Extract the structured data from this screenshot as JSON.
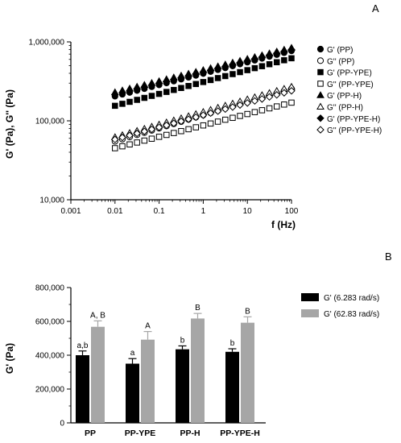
{
  "panels": {
    "a": "A",
    "b": "B"
  },
  "chart_data": [
    {
      "type": "scatter",
      "xlabel": "f (Hz)",
      "ylabel": "G' (Pa), G'' (Pa)",
      "xscale": "log",
      "yscale": "log",
      "xlim": [
        0.001,
        100
      ],
      "ylim": [
        10000,
        1000000
      ],
      "xticks": [
        "0.001",
        "0.01",
        "0.1",
        "1",
        "10",
        "100"
      ],
      "yticks": [
        "10,000",
        "100,000",
        "1,000,000"
      ],
      "grid": false,
      "legend_position": "right",
      "x": [
        0.01,
        0.0147,
        0.0215,
        0.0316,
        0.0464,
        0.0681,
        0.1,
        0.147,
        0.215,
        0.316,
        0.464,
        0.681,
        1,
        1.47,
        2.15,
        3.16,
        4.64,
        6.81,
        10,
        14.7,
        21.5,
        31.6,
        46.4,
        68.1,
        100
      ],
      "series": [
        {
          "name": "G' (PP)",
          "marker": "filled-circle",
          "y_start": 205000,
          "y_end": 770000
        },
        {
          "name": "G'' (PP)",
          "marker": "open-circle",
          "y_start": 55000,
          "y_end": 255000
        },
        {
          "name": "G' (PP-YPE)",
          "marker": "filled-square",
          "y_start": 155000,
          "y_end": 620000
        },
        {
          "name": "G'' (PP-YPE)",
          "marker": "open-square",
          "y_start": 45000,
          "y_end": 170000
        },
        {
          "name": "G' (PP-H)",
          "marker": "filled-triangle",
          "y_start": 230000,
          "y_end": 840000
        },
        {
          "name": "G'' (PP-H)",
          "marker": "open-triangle",
          "y_start": 62000,
          "y_end": 270000
        },
        {
          "name": "G' (PP-YPE-H)",
          "marker": "filled-diamond",
          "y_start": 215000,
          "y_end": 800000
        },
        {
          "name": "G'' (PP-YPE-H)",
          "marker": "open-diamond",
          "y_start": 58000,
          "y_end": 240000
        }
      ]
    },
    {
      "type": "bar",
      "ylabel": "G' (Pa)",
      "ylim": [
        0,
        800000
      ],
      "yticks": [
        "0",
        "200,000",
        "400,000",
        "600,000",
        "800,000"
      ],
      "categories": [
        "PP",
        "PP-YPE",
        "PP-H",
        "PP-YPE-H"
      ],
      "legend_position": "right",
      "series": [
        {
          "name": "G' (6.283 rad/s)",
          "color": "#000000",
          "values": [
            400000,
            350000,
            435000,
            420000
          ],
          "errors": [
            25000,
            30000,
            20000,
            18000
          ],
          "labels": [
            "a,b",
            "a",
            "b",
            "b"
          ]
        },
        {
          "name": "G' (62.83 rad/s)",
          "color": "#a6a6a6",
          "values": [
            568000,
            492000,
            617000,
            592000
          ],
          "errors": [
            35000,
            48000,
            30000,
            35000
          ],
          "labels": [
            "A, B",
            "A",
            "B",
            "B"
          ]
        }
      ]
    }
  ]
}
